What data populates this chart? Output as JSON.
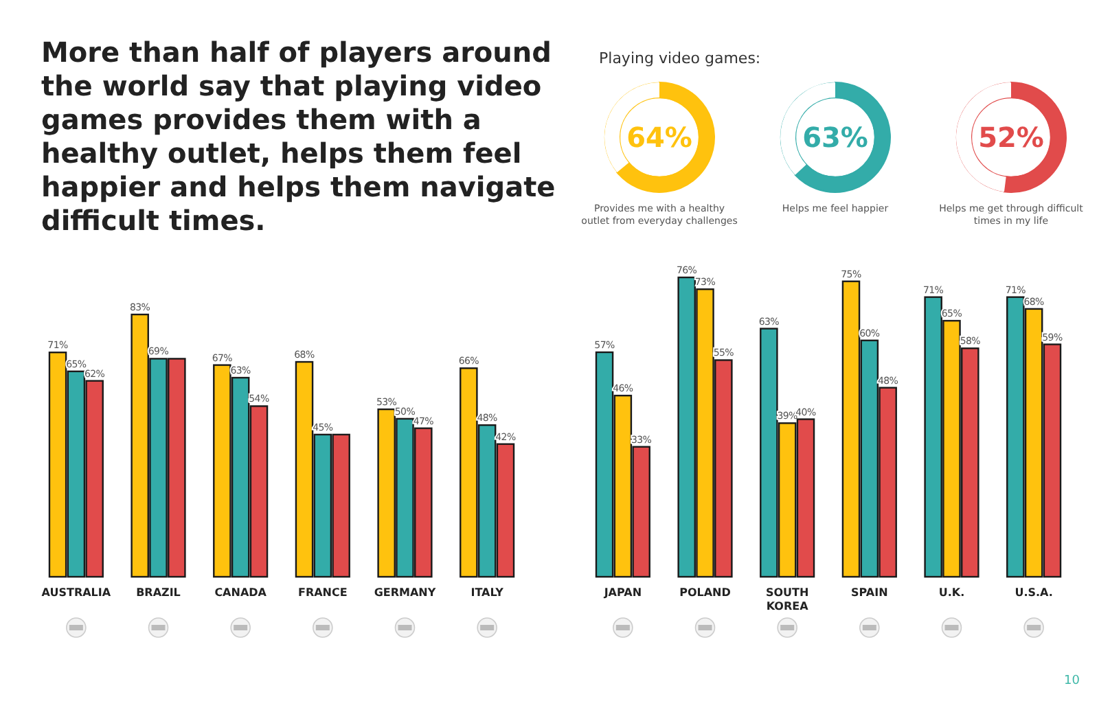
{
  "chart_data": [
    {
      "type": "bar",
      "title": "More than half of players around the world say that playing video games provides them with a healthy outlet, helps them feel happier and helps them navigate difficult times.",
      "categories": [
        "AUSTRALIA",
        "BRAZIL",
        "CANADA",
        "FRANCE",
        "GERMANY",
        "ITALY"
      ],
      "tick_labels": "x",
      "series": [
        {
          "color": "#ffc20e",
          "values": [
            71,
            83,
            67,
            68,
            53,
            66
          ],
          "value_labels": [
            "71%",
            "83%",
            "67%",
            "68%",
            "53%",
            "66%"
          ]
        },
        {
          "color": "#33aca9",
          "values": [
            65,
            69,
            63,
            45,
            50,
            48
          ],
          "value_labels": [
            "65%",
            "69%",
            "63%",
            "45%",
            "50%",
            "48%"
          ]
        },
        {
          "color": "#e14b4b",
          "values": [
            62,
            69,
            54,
            45,
            47,
            42
          ],
          "value_labels": [
            "62%",
            null,
            "54%",
            null,
            "47%",
            "42%"
          ]
        }
      ]
    },
    {
      "type": "donut",
      "title": "Playing video games:",
      "categories": [
        "Provides me with a healthy outlet from everyday challenges",
        null
      ],
      "values": [
        64,
        36
      ],
      "colors": [
        "#ffc20e",
        "#ffffff"
      ],
      "value_labels": [
        "64%",
        null
      ]
    },
    {
      "type": "donut",
      "categories": [
        "Helps me feel happier",
        null
      ],
      "values": [
        63,
        37
      ],
      "colors": [
        "#33aca9",
        "#ffffff"
      ],
      "value_labels": [
        "63%",
        null
      ]
    },
    {
      "type": "donut",
      "categories": [
        "Helps me get through difficult times in my life",
        null
      ],
      "values": [
        52,
        48
      ],
      "colors": [
        "#e14b4b",
        "#ffffff"
      ],
      "value_labels": [
        "52%",
        null
      ]
    },
    {
      "type": "bar",
      "categories": [
        "JAPAN",
        "POLAND",
        "SOUTH KOREA",
        "SPAIN",
        "U.K.",
        "U.S.A."
      ],
      "tick_labels": "x",
      "annotations": [
        "10"
      ],
      "series": [
        {
          "colors": [
            "#33aca9",
            "#33aca9",
            "#33aca9",
            "#ffc20e",
            "#33aca9",
            "#33aca9"
          ],
          "values": [
            57,
            76,
            63,
            75,
            71,
            71
          ],
          "value_labels": [
            "57%",
            "76%",
            "63%",
            "75%",
            "71%",
            "71%"
          ]
        },
        {
          "colors": [
            "#ffc20e",
            "#ffc20e",
            "#ffc20e",
            "#33aca9",
            "#ffc20e",
            "#ffc20e"
          ],
          "values": [
            46,
            73,
            39,
            60,
            65,
            68
          ],
          "value_labels": [
            "46%",
            "73%",
            "39%",
            "60%",
            "65%",
            "68%"
          ]
        },
        {
          "colors": [
            "#e14b4b",
            "#e14b4b",
            "#e14b4b",
            "#e14b4b",
            "#e14b4b",
            "#e14b4b"
          ],
          "values": [
            33,
            55,
            40,
            48,
            58,
            59
          ],
          "value_labels": [
            "33%",
            "55%",
            "40%",
            "48%",
            "58%",
            "59%"
          ]
        }
      ]
    }
  ]
}
